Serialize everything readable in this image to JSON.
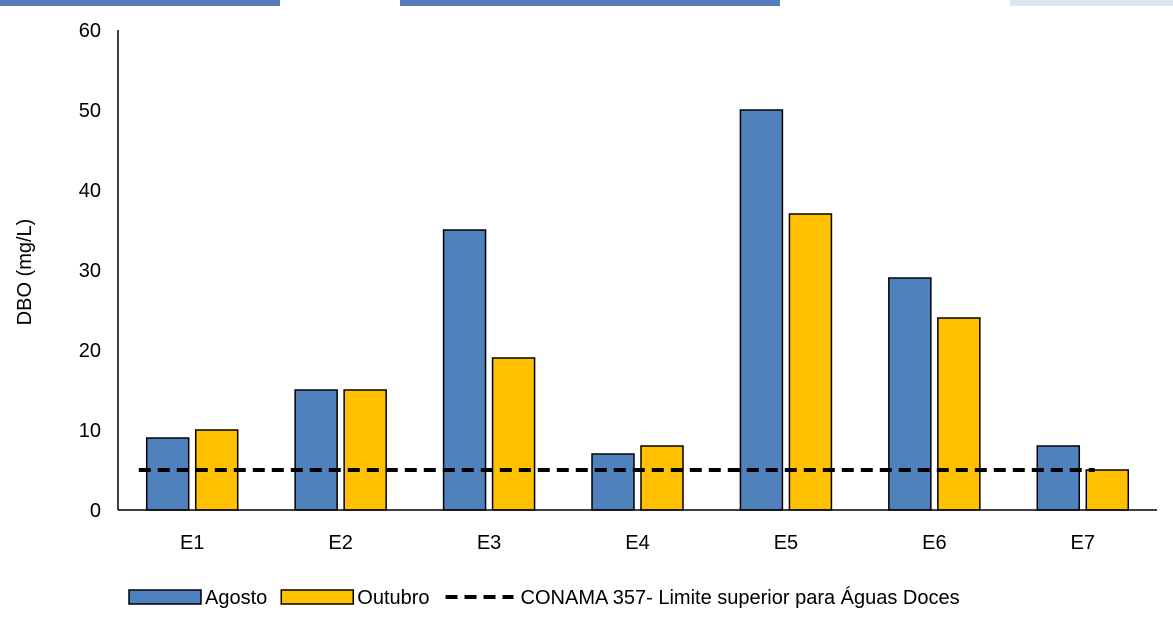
{
  "chart_data": {
    "type": "bar",
    "title": "",
    "xlabel": "",
    "ylabel": "DBO (mg/L)",
    "ylim": [
      0,
      60
    ],
    "yticks": [
      0,
      10,
      20,
      30,
      40,
      50,
      60
    ],
    "categories": [
      "E1",
      "E2",
      "E3",
      "E4",
      "E5",
      "E6",
      "E7"
    ],
    "series": [
      {
        "name": "Agosto",
        "values": [
          9,
          15,
          35,
          7,
          50,
          29,
          8
        ],
        "color": "#4f81bd",
        "kind": "bar"
      },
      {
        "name": "Outubro",
        "values": [
          10,
          15,
          19,
          8,
          37,
          24,
          5
        ],
        "color": "#ffc000",
        "kind": "bar"
      },
      {
        "name": "CONAMA 357- Limite superior para Águas Doces",
        "values": [
          5,
          5,
          5,
          5,
          5,
          5,
          5
        ],
        "color": "#000000",
        "kind": "dashed-line"
      }
    ],
    "grid": false,
    "legend_position": "bottom"
  }
}
